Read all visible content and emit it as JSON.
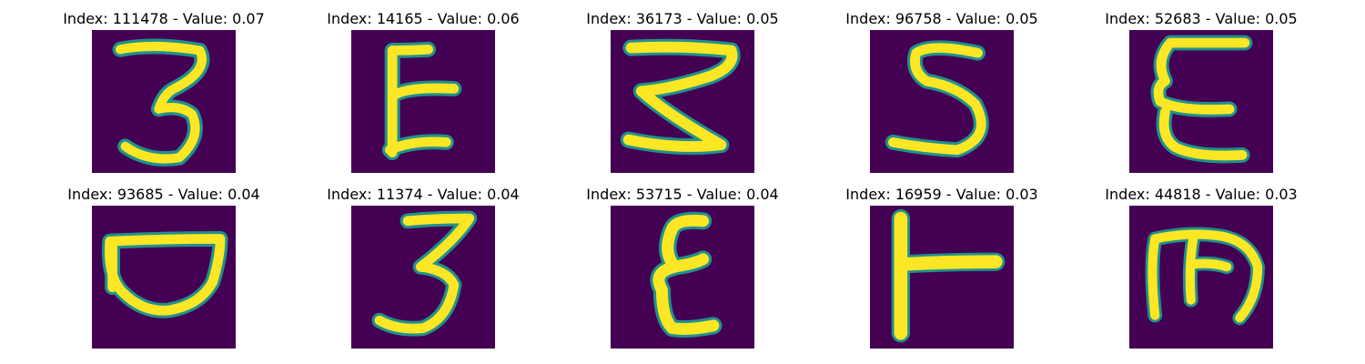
{
  "colormap": {
    "background": "#440154",
    "edge": "#21918c",
    "stroke": "#fde725"
  },
  "panels": [
    {
      "title": "Index: 111478 - Value: 0.07",
      "glyph": "3"
    },
    {
      "title": "Index: 14165 - Value: 0.06",
      "glyph": "E"
    },
    {
      "title": "Index: 36173 - Value: 0.05",
      "glyph": "3"
    },
    {
      "title": "Index: 96758 - Value: 0.05",
      "glyph": "S"
    },
    {
      "title": "Index: 52683 - Value: 0.05",
      "glyph": "E"
    },
    {
      "title": "Index: 93685 - Value: 0.04",
      "glyph": "D"
    },
    {
      "title": "Index: 11374 - Value: 0.04",
      "glyph": "3"
    },
    {
      "title": "Index: 53715 - Value: 0.04",
      "glyph": "E"
    },
    {
      "title": "Index: 16959 - Value: 0.03",
      "glyph": "T"
    },
    {
      "title": "Index: 44818 - Value: 0.03",
      "glyph": "E"
    }
  ]
}
